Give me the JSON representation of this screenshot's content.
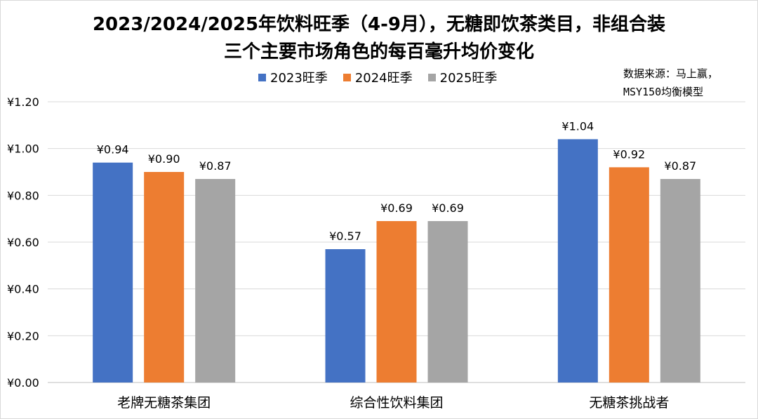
{
  "title_line1": "2023/2024/2025年饮料旺季（4-9月），无糖即饮茶类目，非组合装",
  "title_line2": "三个主要市场角色的每百毫升均价变化",
  "source_line1": "数据来源：马上赢，",
  "source_line2": "MSY150均衡模型",
  "colors": {
    "s2023": "#4472C4",
    "s2024": "#ED7D31",
    "s2025": "#A5A5A5",
    "grid": "#d9d9d9",
    "axis": "#bfbfbf"
  },
  "chart_data": {
    "type": "bar",
    "title": "2023/2024/2025年饮料旺季（4-9月），无糖即饮茶类目，非组合装 三个主要市场角色的每百毫升均价变化",
    "categories": [
      "老牌无糖茶集团",
      "综合性饮料集团",
      "无糖茶挑战者"
    ],
    "series": [
      {
        "name": "2023旺季",
        "values": [
          0.94,
          0.57,
          1.04
        ],
        "labels": [
          "¥0.94",
          "¥0.57",
          "¥1.04"
        ]
      },
      {
        "name": "2024旺季",
        "values": [
          0.9,
          0.69,
          0.92
        ],
        "labels": [
          "¥0.90",
          "¥0.69",
          "¥0.92"
        ]
      },
      {
        "name": "2025旺季",
        "values": [
          0.87,
          0.69,
          0.87
        ],
        "labels": [
          "¥0.87",
          "¥0.69",
          "¥0.87"
        ]
      }
    ],
    "ylim": [
      0,
      1.2
    ],
    "yticks": [
      "¥0.00",
      "¥0.20",
      "¥0.40",
      "¥0.60",
      "¥0.80",
      "¥1.00",
      "¥1.20"
    ],
    "grid": true,
    "legend_position": "top"
  }
}
